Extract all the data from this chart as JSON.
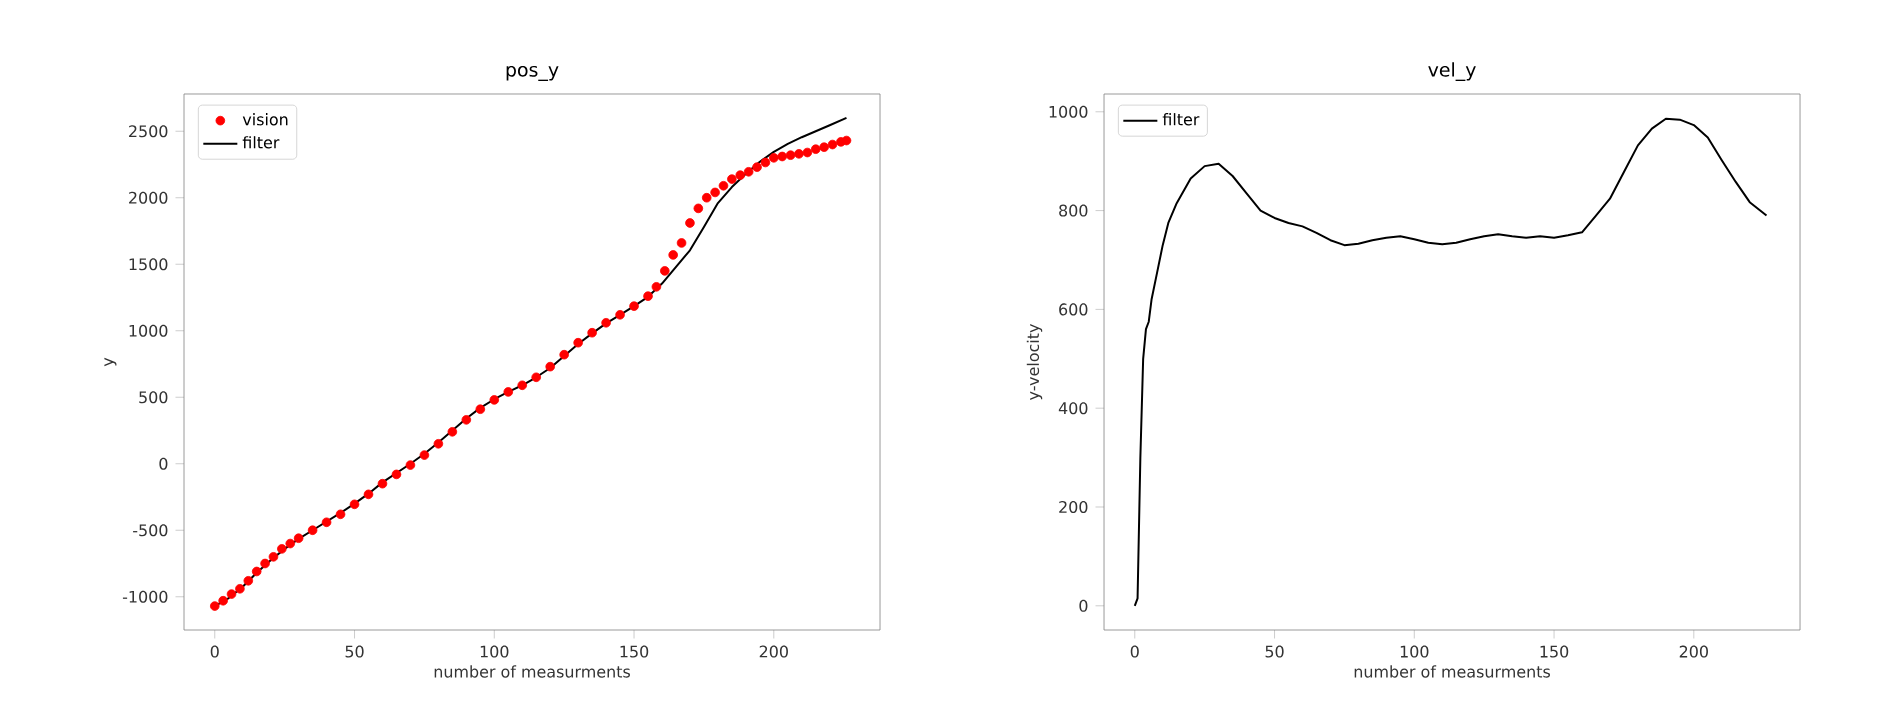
{
  "chart_data": [
    {
      "type": "line",
      "title": "pos_y",
      "xlabel": "number of measurments",
      "ylabel": "y",
      "xlim": [
        -11,
        238
      ],
      "ylim": [
        -1250,
        2780
      ],
      "xticks": [
        0,
        50,
        100,
        150,
        200
      ],
      "yticks": [
        -1000,
        -500,
        0,
        500,
        1000,
        1500,
        2000,
        2500
      ],
      "grid": false,
      "legend": "top left",
      "series": [
        {
          "name": "vision",
          "type": "scatter",
          "marker": "circle",
          "color": "#ff0000",
          "x": [
            0,
            3,
            6,
            9,
            12,
            15,
            18,
            21,
            24,
            27,
            30,
            35,
            40,
            45,
            50,
            55,
            60,
            65,
            70,
            75,
            80,
            85,
            90,
            95,
            100,
            105,
            110,
            115,
            120,
            125,
            130,
            135,
            140,
            145,
            150,
            155,
            158,
            161,
            164,
            167,
            170,
            173,
            176,
            179,
            182,
            185,
            188,
            191,
            194,
            197,
            200,
            203,
            206,
            209,
            212,
            215,
            218,
            221,
            224,
            226
          ],
          "values": [
            -1070,
            -1030,
            -980,
            -940,
            -880,
            -810,
            -750,
            -700,
            -640,
            -600,
            -560,
            -500,
            -440,
            -380,
            -305,
            -230,
            -150,
            -80,
            -10,
            65,
            150,
            240,
            330,
            410,
            480,
            540,
            590,
            650,
            730,
            820,
            910,
            985,
            1060,
            1120,
            1185,
            1260,
            1330,
            1450,
            1570,
            1660,
            1810,
            1920,
            2000,
            2040,
            2090,
            2140,
            2170,
            2195,
            2230,
            2265,
            2300,
            2310,
            2320,
            2330,
            2340,
            2365,
            2380,
            2400,
            2420,
            2430
          ]
        },
        {
          "name": "filter",
          "marker": "none",
          "color": "#000000",
          "x": [
            0,
            5,
            10,
            15,
            20,
            25,
            30,
            35,
            40,
            45,
            50,
            55,
            60,
            65,
            70,
            75,
            80,
            85,
            90,
            95,
            100,
            105,
            110,
            115,
            120,
            125,
            130,
            135,
            140,
            145,
            150,
            155,
            160,
            165,
            170,
            175,
            180,
            185,
            190,
            195,
            200,
            205,
            210,
            215,
            220,
            226
          ],
          "values": [
            -1070,
            -1010,
            -925,
            -820,
            -725,
            -640,
            -565,
            -500,
            -435,
            -370,
            -300,
            -225,
            -140,
            -70,
            0,
            75,
            160,
            250,
            340,
            420,
            485,
            540,
            590,
            650,
            720,
            810,
            900,
            980,
            1055,
            1120,
            1185,
            1255,
            1355,
            1480,
            1605,
            1780,
            1960,
            2080,
            2180,
            2270,
            2345,
            2405,
            2455,
            2500,
            2545,
            2600
          ]
        }
      ]
    },
    {
      "type": "line",
      "title": "vel_y",
      "xlabel": "number of measurments",
      "ylabel": "y-velocity",
      "xlim": [
        -11,
        238
      ],
      "ylim": [
        -49,
        1036
      ],
      "xticks": [
        0,
        50,
        100,
        150,
        200
      ],
      "yticks": [
        0,
        200,
        400,
        600,
        800,
        1000
      ],
      "grid": false,
      "legend": "top left",
      "series": [
        {
          "name": "filter",
          "marker": "none",
          "color": "#000000",
          "x": [
            0,
            1,
            2,
            3,
            4,
            5,
            6,
            8,
            10,
            12,
            15,
            20,
            25,
            30,
            35,
            40,
            45,
            50,
            55,
            60,
            65,
            70,
            75,
            80,
            85,
            90,
            95,
            100,
            105,
            110,
            115,
            120,
            125,
            130,
            135,
            140,
            145,
            150,
            155,
            160,
            165,
            170,
            175,
            180,
            185,
            190,
            195,
            200,
            205,
            210,
            215,
            220,
            226
          ],
          "values": [
            0,
            15,
            300,
            500,
            560,
            575,
            620,
            675,
            730,
            775,
            815,
            865,
            890,
            895,
            870,
            835,
            800,
            785,
            775,
            768,
            755,
            740,
            730,
            733,
            740,
            745,
            748,
            742,
            735,
            732,
            735,
            742,
            748,
            752,
            748,
            745,
            748,
            745,
            750,
            756,
            790,
            824,
            878,
            932,
            966,
            986,
            984,
            973,
            948,
            902,
            858,
            817,
            790
          ]
        }
      ]
    }
  ]
}
